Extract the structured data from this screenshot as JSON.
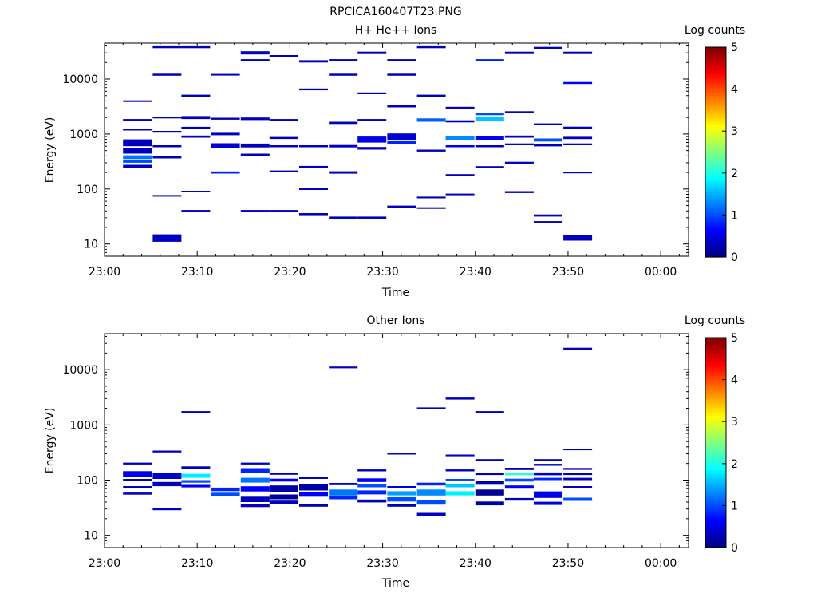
{
  "title": "RPCICA160407T23.PNG",
  "colorbar": {
    "label": "Log counts",
    "ticks": [
      "0",
      "1",
      "2",
      "3",
      "4",
      "5"
    ],
    "range": [
      0,
      5
    ]
  },
  "chart_data": [
    {
      "type": "heatmap",
      "title": "H+ He++ Ions",
      "xlabel": "Time",
      "ylabel": "Energy (eV)",
      "yscale": "log",
      "xlim_minutes": [
        0,
        63
      ],
      "ylim": [
        6,
        45000
      ],
      "x_ticks": [
        {
          "m": 0,
          "label": "23:00"
        },
        {
          "m": 10,
          "label": "23:10"
        },
        {
          "m": 20,
          "label": "23:20"
        },
        {
          "m": 30,
          "label": "23:30"
        },
        {
          "m": 40,
          "label": "23:40"
        },
        {
          "m": 50,
          "label": "23:50"
        },
        {
          "m": 60,
          "label": "00:00"
        }
      ],
      "y_ticks": [
        {
          "v": 10,
          "label": "10"
        },
        {
          "v": 100,
          "label": "100"
        },
        {
          "v": 1000,
          "label": "1000"
        },
        {
          "v": 10000,
          "label": "10000"
        }
      ],
      "time_bins_start": [
        2,
        5.2,
        8.3,
        11.5,
        14.7,
        17.8,
        21,
        24.2,
        27.3,
        30.5,
        33.7,
        36.8,
        40,
        43.2,
        46.3,
        49.5
      ],
      "bin_width_minutes": 3.1,
      "cells": [
        [
          0,
          700,
          200,
          0.3
        ],
        [
          0,
          500,
          120,
          0.3
        ],
        [
          0,
          380,
          60,
          1.2
        ],
        [
          0,
          320,
          40,
          1.0
        ],
        [
          0,
          1800,
          150,
          0.3
        ],
        [
          0,
          1200,
          80,
          0.3
        ],
        [
          0,
          260,
          30,
          0.3
        ],
        [
          0,
          4000,
          200,
          0.3
        ],
        [
          1,
          13,
          4,
          0.3
        ],
        [
          1,
          1100,
          80,
          0.3
        ],
        [
          1,
          600,
          50,
          0.3
        ],
        [
          1,
          380,
          40,
          0.3
        ],
        [
          1,
          2000,
          150,
          0.3
        ],
        [
          1,
          12000,
          1000,
          0.3
        ],
        [
          1,
          38000,
          3000,
          0.3
        ],
        [
          1,
          75,
          5,
          0.3
        ],
        [
          2,
          40,
          3,
          0.3
        ],
        [
          2,
          900,
          80,
          0.3
        ],
        [
          2,
          2000,
          250,
          0.3
        ],
        [
          2,
          1300,
          100,
          0.3
        ],
        [
          2,
          38000,
          3000,
          0.3
        ],
        [
          2,
          5000,
          400,
          0.3
        ],
        [
          2,
          90,
          6,
          0.3
        ],
        [
          3,
          200,
          18,
          0.8
        ],
        [
          3,
          620,
          120,
          0.4
        ],
        [
          3,
          1900,
          150,
          0.3
        ],
        [
          3,
          1000,
          100,
          0.3
        ],
        [
          3,
          12000,
          800,
          0.3
        ],
        [
          4,
          40,
          3,
          0.3
        ],
        [
          4,
          30000,
          4000,
          0.3
        ],
        [
          4,
          1900,
          200,
          0.3
        ],
        [
          4,
          620,
          100,
          0.3
        ],
        [
          4,
          420,
          40,
          0.3
        ],
        [
          4,
          22000,
          2000,
          0.3
        ],
        [
          5,
          40,
          3,
          0.3
        ],
        [
          5,
          26000,
          2500,
          0.3
        ],
        [
          5,
          850,
          70,
          0.3
        ],
        [
          5,
          1800,
          150,
          0.3
        ],
        [
          5,
          600,
          50,
          0.3
        ],
        [
          5,
          210,
          15,
          0.3
        ],
        [
          6,
          35,
          3,
          0.3
        ],
        [
          6,
          100,
          8,
          0.3
        ],
        [
          6,
          250,
          25,
          0.3
        ],
        [
          6,
          600,
          50,
          0.3
        ],
        [
          6,
          21000,
          2000,
          0.3
        ],
        [
          6,
          6500,
          500,
          0.3
        ],
        [
          7,
          30,
          3,
          0.3
        ],
        [
          7,
          200,
          20,
          0.3
        ],
        [
          7,
          1600,
          150,
          0.3
        ],
        [
          7,
          600,
          60,
          0.3
        ],
        [
          7,
          22000,
          2000,
          0.3
        ],
        [
          7,
          12000,
          1000,
          0.3
        ],
        [
          8,
          30,
          3,
          0.3
        ],
        [
          8,
          800,
          200,
          0.5
        ],
        [
          8,
          550,
          60,
          0.3
        ],
        [
          8,
          5500,
          400,
          0.3
        ],
        [
          8,
          30000,
          3000,
          0.3
        ],
        [
          8,
          1800,
          150,
          0.3
        ],
        [
          9,
          48,
          4,
          0.3
        ],
        [
          9,
          900,
          250,
          0.4
        ],
        [
          9,
          700,
          80,
          0.8
        ],
        [
          9,
          3200,
          300,
          0.3
        ],
        [
          9,
          22000,
          2000,
          0.3
        ],
        [
          9,
          12000,
          1000,
          0.3
        ],
        [
          10,
          45,
          3,
          0.3
        ],
        [
          10,
          1800,
          250,
          1.1
        ],
        [
          10,
          500,
          40,
          0.3
        ],
        [
          10,
          70,
          5,
          0.3
        ],
        [
          10,
          38000,
          3000,
          0.3
        ],
        [
          10,
          5000,
          400,
          0.3
        ],
        [
          11,
          850,
          150,
          1.3
        ],
        [
          11,
          600,
          50,
          0.6
        ],
        [
          11,
          1700,
          150,
          0.3
        ],
        [
          11,
          3000,
          250,
          0.3
        ],
        [
          11,
          180,
          12,
          0.3
        ],
        [
          11,
          80,
          5,
          0.3
        ],
        [
          12,
          1900,
          300,
          1.6
        ],
        [
          12,
          850,
          150,
          0.6
        ],
        [
          12,
          2300,
          200,
          1.0
        ],
        [
          12,
          600,
          50,
          0.3
        ],
        [
          12,
          22000,
          2000,
          0.8
        ],
        [
          12,
          250,
          20,
          0.3
        ],
        [
          13,
          900,
          80,
          0.3
        ],
        [
          13,
          650,
          50,
          0.3
        ],
        [
          13,
          2500,
          200,
          0.3
        ],
        [
          13,
          30000,
          3000,
          0.3
        ],
        [
          13,
          88,
          7,
          0.3
        ],
        [
          13,
          300,
          25,
          0.3
        ],
        [
          14,
          780,
          100,
          1.0
        ],
        [
          14,
          1500,
          120,
          0.3
        ],
        [
          14,
          33,
          3,
          0.3
        ],
        [
          14,
          25,
          2,
          0.3
        ],
        [
          14,
          37000,
          3000,
          0.3
        ],
        [
          14,
          620,
          50,
          0.3
        ],
        [
          15,
          13,
          3,
          0.3
        ],
        [
          15,
          1300,
          120,
          0.3
        ],
        [
          15,
          850,
          80,
          0.3
        ],
        [
          15,
          650,
          50,
          0.3
        ],
        [
          15,
          8500,
          700,
          0.6
        ],
        [
          15,
          30000,
          3000,
          0.3
        ],
        [
          15,
          200,
          15,
          0.3
        ]
      ]
    },
    {
      "type": "heatmap",
      "title": "Other Ions",
      "xlabel": "Time",
      "ylabel": "Energy (eV)",
      "yscale": "log",
      "xlim_minutes": [
        0,
        63
      ],
      "ylim": [
        6,
        45000
      ],
      "x_ticks": [
        {
          "m": 0,
          "label": "23:00"
        },
        {
          "m": 10,
          "label": "23:10"
        },
        {
          "m": 20,
          "label": "23:20"
        },
        {
          "m": 30,
          "label": "23:30"
        },
        {
          "m": 40,
          "label": "23:40"
        },
        {
          "m": 50,
          "label": "23:50"
        },
        {
          "m": 60,
          "label": "00:00"
        }
      ],
      "y_ticks": [
        {
          "v": 10,
          "label": "10"
        },
        {
          "v": 100,
          "label": "100"
        },
        {
          "v": 1000,
          "label": "1000"
        },
        {
          "v": 10000,
          "label": "10000"
        }
      ],
      "time_bins_start": [
        2,
        5.2,
        8.3,
        11.5,
        14.7,
        17.8,
        21,
        24.2,
        27.3,
        30.5,
        33.7,
        36.8,
        40,
        43.2,
        46.3,
        49.5
      ],
      "bin_width_minutes": 3.1,
      "cells": [
        [
          0,
          200,
          15,
          0.3
        ],
        [
          0,
          130,
          30,
          0.5
        ],
        [
          0,
          100,
          10,
          0.3
        ],
        [
          0,
          75,
          6,
          0.3
        ],
        [
          0,
          57,
          5,
          0.3
        ],
        [
          1,
          330,
          25,
          0.3
        ],
        [
          1,
          120,
          30,
          0.4
        ],
        [
          1,
          85,
          15,
          0.3
        ],
        [
          1,
          30,
          3,
          0.3
        ],
        [
          2,
          1700,
          150,
          0.3
        ],
        [
          2,
          170,
          15,
          0.3
        ],
        [
          2,
          120,
          20,
          1.8
        ],
        [
          2,
          95,
          10,
          1.0
        ],
        [
          2,
          78,
          8,
          0.6
        ],
        [
          3,
          68,
          10,
          0.8
        ],
        [
          3,
          55,
          8,
          1.0
        ],
        [
          4,
          200,
          15,
          0.3
        ],
        [
          4,
          150,
          30,
          0.8
        ],
        [
          4,
          100,
          20,
          1.2
        ],
        [
          4,
          70,
          15,
          0.6
        ],
        [
          4,
          45,
          10,
          0.3
        ],
        [
          4,
          35,
          5,
          0.3
        ],
        [
          5,
          130,
          10,
          0.4
        ],
        [
          5,
          100,
          12,
          0.6
        ],
        [
          5,
          70,
          20,
          0.2
        ],
        [
          5,
          50,
          10,
          0.1
        ],
        [
          5,
          40,
          5,
          0.3
        ],
        [
          6,
          110,
          10,
          0.4
        ],
        [
          6,
          75,
          20,
          0.2
        ],
        [
          6,
          55,
          10,
          0.6
        ],
        [
          6,
          35,
          4,
          0.3
        ],
        [
          7,
          11000,
          800,
          0.3
        ],
        [
          7,
          85,
          8,
          0.4
        ],
        [
          7,
          60,
          15,
          1.2
        ],
        [
          7,
          48,
          6,
          0.8
        ],
        [
          8,
          150,
          12,
          0.3
        ],
        [
          8,
          100,
          15,
          0.6
        ],
        [
          8,
          80,
          12,
          1.0
        ],
        [
          8,
          60,
          10,
          0.8
        ],
        [
          8,
          42,
          5,
          0.3
        ],
        [
          9,
          300,
          20,
          0.3
        ],
        [
          9,
          75,
          6,
          0.5
        ],
        [
          9,
          58,
          10,
          1.4
        ],
        [
          9,
          45,
          8,
          1.0
        ],
        [
          9,
          35,
          4,
          0.3
        ],
        [
          10,
          2000,
          150,
          0.3
        ],
        [
          10,
          85,
          10,
          0.8
        ],
        [
          10,
          60,
          15,
          1.3
        ],
        [
          10,
          40,
          8,
          1.0
        ],
        [
          10,
          24,
          3,
          0.3
        ],
        [
          11,
          3000,
          250,
          0.3
        ],
        [
          11,
          280,
          20,
          0.3
        ],
        [
          11,
          150,
          12,
          0.3
        ],
        [
          11,
          100,
          10,
          1.0
        ],
        [
          11,
          80,
          12,
          1.6
        ],
        [
          11,
          58,
          10,
          1.8
        ],
        [
          12,
          1700,
          150,
          0.3
        ],
        [
          12,
          230,
          20,
          0.3
        ],
        [
          12,
          130,
          12,
          0.3
        ],
        [
          12,
          90,
          15,
          0.2
        ],
        [
          12,
          60,
          15,
          0.1
        ],
        [
          12,
          38,
          6,
          0.2
        ],
        [
          13,
          160,
          15,
          0.3
        ],
        [
          13,
          130,
          15,
          2.1
        ],
        [
          13,
          100,
          12,
          1.0
        ],
        [
          13,
          75,
          10,
          0.6
        ],
        [
          13,
          45,
          5,
          0.3
        ],
        [
          14,
          230,
          20,
          0.3
        ],
        [
          14,
          190,
          15,
          0.3
        ],
        [
          14,
          130,
          15,
          0.3
        ],
        [
          14,
          105,
          10,
          0.8
        ],
        [
          14,
          55,
          15,
          0.5
        ],
        [
          14,
          38,
          5,
          0.5
        ],
        [
          15,
          24000,
          2000,
          0.3
        ],
        [
          15,
          360,
          25,
          0.3
        ],
        [
          15,
          160,
          12,
          0.3
        ],
        [
          15,
          130,
          12,
          0.3
        ],
        [
          15,
          105,
          10,
          0.3
        ],
        [
          15,
          75,
          6,
          0.3
        ],
        [
          15,
          45,
          6,
          1.0
        ]
      ]
    }
  ]
}
